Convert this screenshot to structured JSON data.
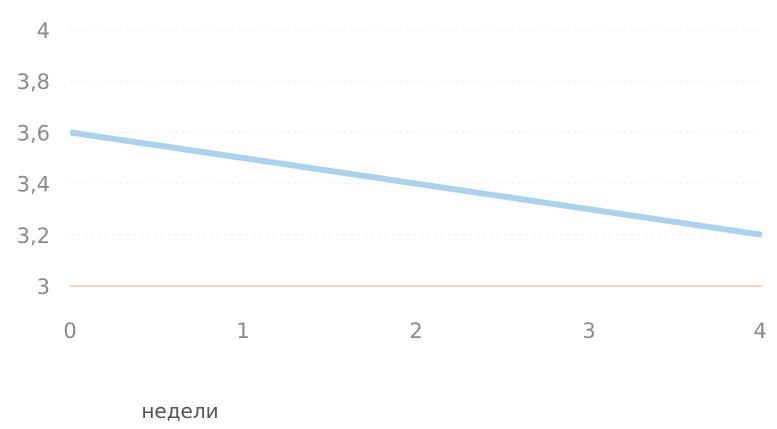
{
  "chart_data": {
    "type": "line",
    "title": "",
    "xlabel": "недели",
    "ylabel": "",
    "x": [
      0,
      1,
      2,
      3,
      4
    ],
    "series": [
      {
        "name": "",
        "values": [
          3.6,
          3.5,
          3.4,
          3.3,
          3.2
        ],
        "color": "#a9d3ec"
      }
    ],
    "xlim": [
      0,
      4
    ],
    "ylim": [
      3,
      4
    ],
    "x_ticks": [
      "0",
      "1",
      "2",
      "3",
      "4"
    ],
    "y_ticks": [
      "3",
      "3,2",
      "3,4",
      "3,6",
      "3,8",
      "4"
    ],
    "y_tick_values": [
      3,
      3.2,
      3.4,
      3.6,
      3.8,
      4
    ],
    "grid": true,
    "colors": {
      "line": "#a9d3ec",
      "baseline": "#e8c9a8",
      "grid": "#eeeeee",
      "tick_text": "#8a8a8a",
      "axis_title_text": "#555555"
    }
  }
}
